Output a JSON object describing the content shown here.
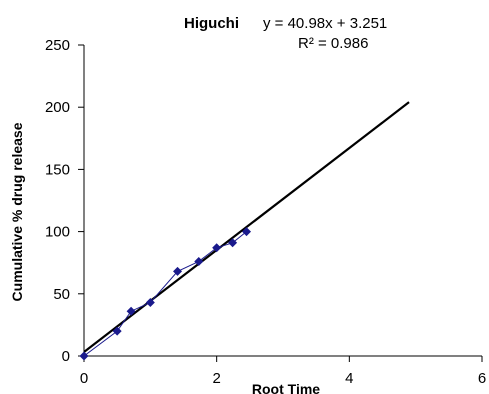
{
  "chart_data": {
    "type": "scatter",
    "title": "",
    "xlabel": "Root Time",
    "ylabel": "Cumulative % drug release",
    "xlim": [
      0,
      6
    ],
    "ylim": [
      0,
      250
    ],
    "x_ticks": [
      "0",
      "2",
      "4",
      "6"
    ],
    "y_ticks": [
      "0",
      "50",
      "100",
      "150",
      "200",
      "250"
    ],
    "grid": false,
    "legend": "none",
    "series": [
      {
        "marker": "diamond",
        "color": "#1a1a8c",
        "connected": true,
        "points": [
          {
            "x": 0,
            "y": 0
          },
          {
            "x": 0.5,
            "y": 20
          },
          {
            "x": 0.71,
            "y": 36
          },
          {
            "x": 1.0,
            "y": 43
          },
          {
            "x": 1.41,
            "y": 68
          },
          {
            "x": 1.73,
            "y": 76
          },
          {
            "x": 2.0,
            "y": 87
          },
          {
            "x": 2.24,
            "y": 91
          },
          {
            "x": 2.45,
            "y": 100
          }
        ]
      }
    ],
    "trendline": {
      "color": "#000000",
      "slope": 40.98,
      "intercept": 3.251,
      "x_range": [
        0,
        4.9
      ]
    },
    "annotation": {
      "name": "Higuchi",
      "equation": "y = 40.98x + 3.251",
      "r2": "R² = 0.986"
    }
  }
}
